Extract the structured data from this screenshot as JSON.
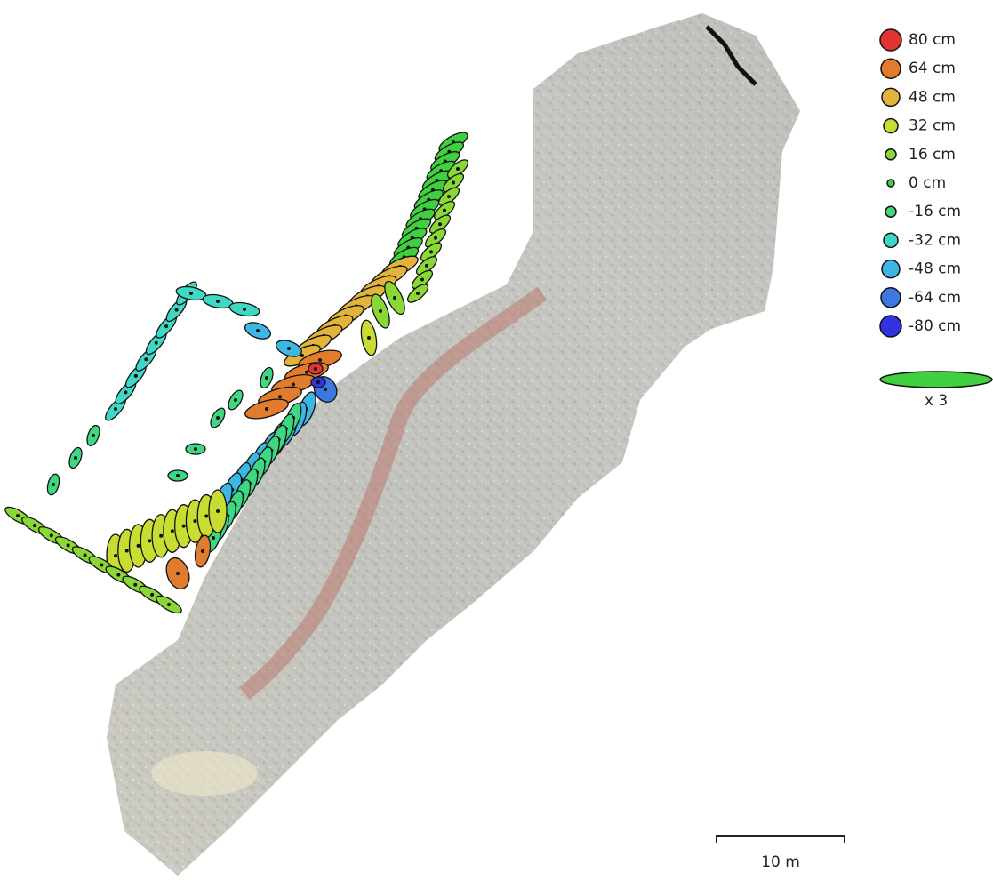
{
  "legend": {
    "items": [
      {
        "label": "80 cm",
        "color": "#e53232"
      },
      {
        "label": "64 cm",
        "color": "#e17c2f"
      },
      {
        "label": "48 cm",
        "color": "#e3b43c"
      },
      {
        "label": "32 cm",
        "color": "#c9dc32"
      },
      {
        "label": "16 cm",
        "color": "#8ad836"
      },
      {
        "label": "0 cm",
        "color": "#3fcf3f"
      },
      {
        "label": "-16 cm",
        "color": "#3fd882"
      },
      {
        "label": "-32 cm",
        "color": "#3fd8c4"
      },
      {
        "label": "-48 cm",
        "color": "#3cb6e2"
      },
      {
        "label": "-64 cm",
        "color": "#3c78e0"
      },
      {
        "label": "-80 cm",
        "color": "#3232e0"
      }
    ],
    "scale_label": "x 3"
  },
  "scale_bar": {
    "label": "10 m"
  }
}
